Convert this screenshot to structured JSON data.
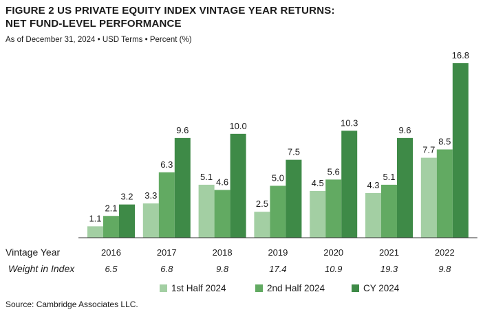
{
  "header": {
    "title_line1": "FIGURE 2  US PRIVATE EQUITY INDEX VINTAGE YEAR RETURNS:",
    "title_line2": "NET FUND-LEVEL PERFORMANCE",
    "subtitle": "As of December 31, 2024 • USD Terms • Percent (%)"
  },
  "row_labels": {
    "vintage": "Vintage Year",
    "weight": "Weight in Index"
  },
  "source": "Source: Cambridge Associates LLC.",
  "colors": {
    "first_half": "#a3cfa3",
    "second_half": "#62aa62",
    "cy": "#3e8a47",
    "axis": "#333333"
  },
  "chart_data": {
    "type": "bar",
    "categories": [
      "2016",
      "2017",
      "2018",
      "2019",
      "2020",
      "2021",
      "2022"
    ],
    "weights": [
      "6.5",
      "6.8",
      "9.8",
      "17.4",
      "10.9",
      "19.3",
      "9.8"
    ],
    "series": [
      {
        "name": "1st Half 2024",
        "values": [
          1.1,
          3.3,
          5.1,
          2.5,
          4.5,
          4.3,
          7.7
        ]
      },
      {
        "name": "2nd Half 2024",
        "values": [
          2.1,
          6.3,
          4.6,
          5.0,
          5.6,
          5.1,
          8.5
        ]
      },
      {
        "name": "CY 2024",
        "values": [
          3.2,
          9.6,
          10.0,
          7.5,
          10.3,
          9.6,
          16.8
        ]
      }
    ],
    "ylim": [
      0,
      16.8
    ],
    "grid": false,
    "legend": "bottom-center"
  }
}
